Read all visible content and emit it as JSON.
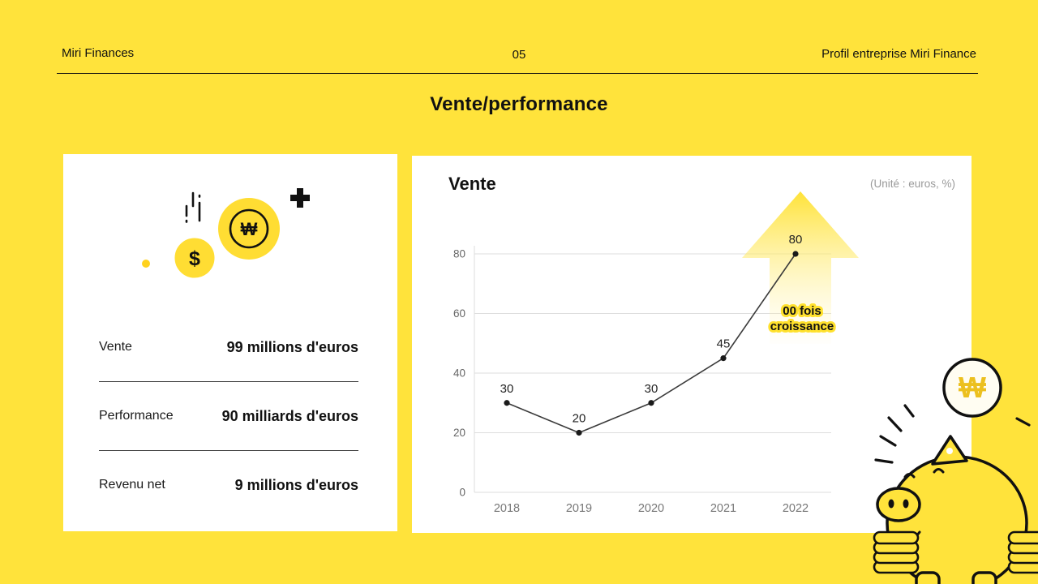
{
  "header": {
    "left": "Miri Finances",
    "page_number": "05",
    "right": "Profil entreprise Miri Finance"
  },
  "slide_title": "Vente/performance",
  "stats": {
    "rows": [
      {
        "label": "Vente",
        "value": "99 millions d'euros"
      },
      {
        "label": "Performance",
        "value": "90 milliards d'euros"
      },
      {
        "label": "Revenu net",
        "value": "9 millions d'euros"
      }
    ]
  },
  "chart_card": {
    "title": "Vente",
    "unit_note": "(Unité : euros, %)"
  },
  "chart_data": {
    "type": "line",
    "title": "Vente",
    "categories": [
      "2018",
      "2019",
      "2020",
      "2021",
      "2022"
    ],
    "values": [
      30,
      20,
      30,
      45,
      80
    ],
    "yticks": [
      0,
      20,
      40,
      60,
      80
    ],
    "ylim": [
      0,
      80
    ],
    "xlabel": "",
    "ylabel": "",
    "grid": true,
    "legend": false,
    "annotation": "00 fois croissance",
    "annotation_lines": [
      "00 fois",
      "croissance"
    ]
  },
  "icons": {
    "won_symbol": "₩",
    "dollar_symbol": "$",
    "piggy_coin_symbol": "₩"
  },
  "colors": {
    "background": "#FFE33B",
    "card": "#FFFFFF",
    "coin_yellow": "#FFDD33",
    "line": "#3b3b3b",
    "grid": "#dedede",
    "arrow": "#FFE12D",
    "annotation_halo": "#FFE12D",
    "muted_text": "#9a9a9a",
    "coin_won_gold": "#ECC01F"
  }
}
